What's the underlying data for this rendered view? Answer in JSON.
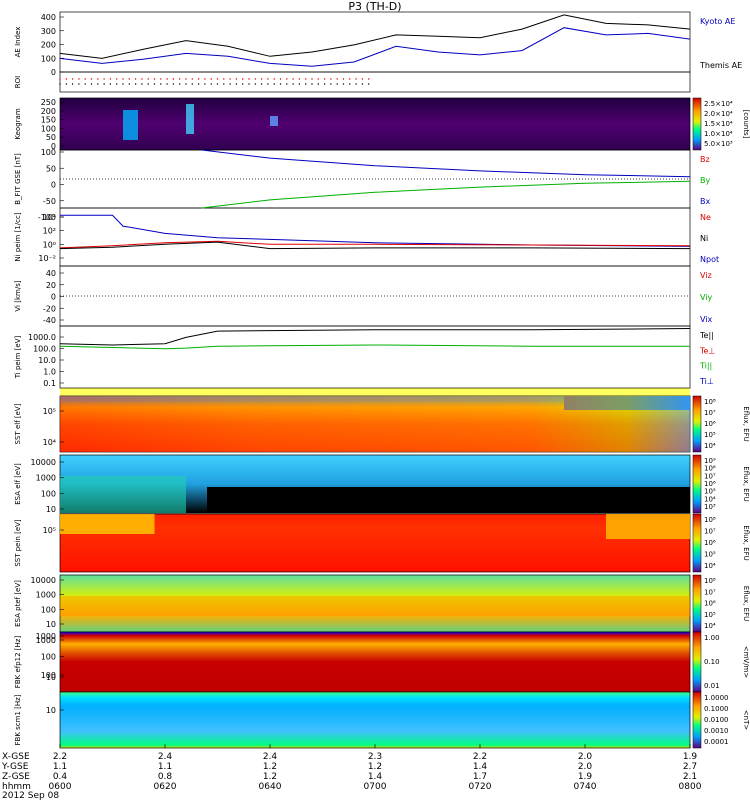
{
  "title": "P3 (TH-D)",
  "date_label": "2012 Sep 08",
  "colors": {
    "kyoto": "#0000c0",
    "themis": "#000000",
    "red": "#e00000",
    "green": "#00b000",
    "blue": "#0000c0"
  },
  "chart_data": [
    {
      "id": "ae",
      "type": "line",
      "ylabel": "AE Index",
      "yticks": [
        "400",
        "300",
        "200",
        "100",
        "0"
      ],
      "ylim": [
        0,
        420
      ],
      "legend": [
        "Kyoto AE",
        "Themis AE"
      ],
      "x_minutes": [
        0,
        8,
        16,
        24,
        32,
        40,
        48,
        56,
        64,
        72,
        80,
        88,
        96,
        104,
        112,
        120
      ],
      "series": [
        {
          "name": "Kyoto AE",
          "values": [
            95,
            60,
            90,
            130,
            110,
            60,
            40,
            70,
            180,
            140,
            120,
            150,
            310,
            260,
            270,
            230
          ]
        },
        {
          "name": "Themis AE",
          "values": [
            130,
            95,
            160,
            220,
            180,
            110,
            140,
            190,
            260,
            250,
            240,
            300,
            400,
            340,
            330,
            300
          ]
        }
      ]
    },
    {
      "id": "roi",
      "type": "scatter",
      "ylabel": "ROI",
      "x_range_minutes": [
        0,
        60
      ]
    },
    {
      "id": "keogram",
      "type": "heatmap",
      "ylabel": "Keogram",
      "yticks": [
        "250",
        "200",
        "150",
        "100",
        "50",
        "0"
      ],
      "colorbar": {
        "label": "[counts]",
        "ticks": [
          "2.5×10⁴",
          "2.0×10⁴",
          "1.5×10⁴",
          "1.0×10⁴",
          "5.0×10³"
        ]
      }
    },
    {
      "id": "bfield",
      "type": "line",
      "ylabel": "B_FIT GSE [nT]",
      "yticks": [
        "100",
        "50",
        "0",
        "-50",
        "-100"
      ],
      "ylim": [
        -100,
        100
      ],
      "legend": [
        "Bz",
        "By",
        "Bx"
      ],
      "series": [
        {
          "name": "Bx",
          "x_minutes": [
            27,
            40,
            60,
            80,
            100,
            120
          ],
          "values": [
            100,
            72,
            46,
            28,
            15,
            8
          ]
        },
        {
          "name": "By",
          "x_minutes": [
            27,
            40,
            60,
            80,
            100,
            120
          ],
          "values": [
            -100,
            -72,
            -46,
            -28,
            -15,
            -8
          ]
        }
      ]
    },
    {
      "id": "density",
      "type": "line",
      "ylabel": "Ni peim [1/cc]",
      "yticks": [
        "10⁴",
        "10²",
        "10⁰",
        "10⁻²"
      ],
      "ylim_log10": [
        -3,
        5
      ],
      "legend": [
        "Ne",
        "Ni",
        "Npot"
      ],
      "series": [
        {
          "name": "Npot",
          "x_minutes": [
            0,
            10,
            12,
            20,
            30,
            60,
            90,
            120
          ],
          "values_log10": [
            4.0,
            4.0,
            2.5,
            1.5,
            0.9,
            0.2,
            -0.1,
            -0.3
          ]
        },
        {
          "name": "Ne",
          "x_minutes": [
            0,
            10,
            20,
            30,
            40,
            60,
            90,
            120
          ],
          "values_log10": [
            -0.5,
            -0.2,
            0.2,
            0.4,
            0.0,
            0.0,
            -0.1,
            -0.2
          ]
        },
        {
          "name": "Ni",
          "x_minutes": [
            0,
            10,
            20,
            30,
            40,
            60,
            90,
            120
          ],
          "values_log10": [
            -0.6,
            -0.4,
            0.0,
            0.3,
            -0.6,
            -0.5,
            -0.5,
            -0.6
          ]
        }
      ]
    },
    {
      "id": "velocity",
      "type": "line",
      "ylabel": "Vi [km/s]",
      "yticks": [
        "40",
        "20",
        "0",
        "-20",
        "-40"
      ],
      "ylim": [
        -50,
        50
      ],
      "legend": [
        "Viz",
        "Viy",
        "Vix"
      ]
    },
    {
      "id": "temperature",
      "type": "line",
      "ylabel": "Ti peim [eV]",
      "yticks": [
        "1000.0",
        "100.0",
        "10.0",
        "1.0",
        "0.1"
      ],
      "ylim_log10": [
        -1.3,
        3.6
      ],
      "legend": [
        "Te||",
        "Te⊥",
        "Ti||",
        "Ti⊥"
      ],
      "series": [
        {
          "name": "Te||",
          "x_minutes": [
            0,
            10,
            20,
            24,
            30,
            60,
            90,
            120
          ],
          "values_log10": [
            2.2,
            2.1,
            2.2,
            2.7,
            3.2,
            3.3,
            3.3,
            3.4
          ]
        },
        {
          "name": "Ti||",
          "x_minutes": [
            0,
            10,
            20,
            24,
            30,
            60,
            90,
            120
          ],
          "values_log10": [
            2.0,
            1.9,
            1.8,
            1.85,
            2.0,
            2.1,
            2.0,
            2.0
          ]
        }
      ]
    },
    {
      "id": "sst-electron",
      "type": "heatmap",
      "ylabel": "SST elf [eV]",
      "yticks": [
        "10⁵",
        "10⁴"
      ],
      "colorbar": {
        "label": "Eflux, EFU",
        "ticks": [
          "10⁸",
          "10⁷",
          "10⁶",
          "10⁵",
          "10⁴"
        ]
      }
    },
    {
      "id": "esa-electron",
      "type": "heatmap",
      "ylabel": "ESA elf [eV]",
      "yticks": [
        "10000",
        "1000",
        "100",
        "10"
      ],
      "colorbar": {
        "label": "Eflux, EFU",
        "ticks": [
          "10⁹",
          "10⁸",
          "10⁷",
          "10⁶",
          "10⁵",
          "10⁴",
          "10³"
        ]
      }
    },
    {
      "id": "sst-ion",
      "type": "heatmap",
      "ylabel": "SST pein [eV]",
      "yticks": [
        "10⁵"
      ],
      "colorbar": {
        "label": "Eflux, EFU",
        "ticks": [
          "10⁸",
          "10⁷",
          "10⁶",
          "10⁵",
          "10⁴"
        ]
      }
    },
    {
      "id": "esa-ion",
      "type": "heatmap",
      "ylabel": "ESA ptef [eV]",
      "yticks": [
        "10000",
        "1000",
        "100",
        "10"
      ],
      "colorbar": {
        "label": "Eflux, EFU",
        "ticks": [
          "10⁸",
          "10⁷",
          "10⁶",
          "10⁵",
          "10⁴"
        ]
      }
    },
    {
      "id": "fbk-e12",
      "type": "heatmap",
      "ylabel": "FBK efp12 [Hz]",
      "yticks": [
        "1000",
        "100",
        "10"
      ],
      "colorbar": {
        "label": "<mV/m>",
        "ticks": [
          "1.00",
          "0.10",
          "0.01"
        ]
      }
    },
    {
      "id": "fbk-b",
      "type": "heatmap",
      "ylabel": "FBK scm1 [Hz]",
      "yticks": [
        "1000",
        "100",
        "10"
      ],
      "colorbar": {
        "label": "<nT>",
        "ticks": [
          "1.0000",
          "0.1000",
          "0.0100",
          "0.0010",
          "0.0001"
        ]
      }
    }
  ],
  "time_axis": {
    "row_labels": [
      "X-GSE",
      "Y-GSE",
      "Z-GSE",
      "hhmm"
    ],
    "columns": [
      {
        "x": "2.2",
        "y": "1.1",
        "z": "0.4",
        "time": "0600"
      },
      {
        "x": "2.4",
        "y": "1.1",
        "z": "0.8",
        "time": "0620"
      },
      {
        "x": "2.4",
        "y": "1.2",
        "z": "1.2",
        "time": "0640"
      },
      {
        "x": "2.3",
        "y": "1.2",
        "z": "1.4",
        "time": "0700"
      },
      {
        "x": "2.2",
        "y": "1.4",
        "z": "1.7",
        "time": "0720"
      },
      {
        "x": "2.0",
        "y": "2.0",
        "z": "1.9",
        "time": "0740"
      },
      {
        "x": "1.9",
        "y": "2.7",
        "z": "2.1",
        "time": "0800"
      }
    ]
  }
}
